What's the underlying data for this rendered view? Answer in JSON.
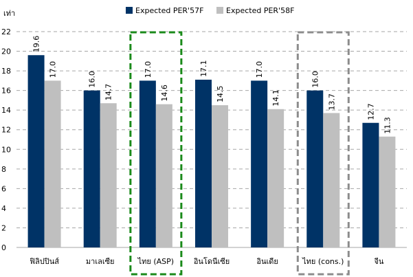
{
  "chart_data": {
    "type": "bar",
    "ylabel": "เท่า",
    "ylim": [
      0,
      22
    ],
    "yticks": [
      0,
      2,
      4,
      6,
      8,
      10,
      12,
      14,
      16,
      18,
      20,
      22
    ],
    "grid": true,
    "legend_position": "top",
    "categories": [
      "ฟิลิปปินส์",
      "มาเลเซีย",
      "ไทย (ASP)",
      "อินโดนีเซีย",
      "อินเดีย",
      "ไทย (cons.)",
      "จีน"
    ],
    "series": [
      {
        "name": "Expected PER'57F",
        "color": "#003366",
        "values": [
          19.6,
          16.0,
          17.0,
          17.1,
          17.0,
          16.0,
          12.7
        ]
      },
      {
        "name": "Expected PER'58F",
        "color": "#bfbfbf",
        "values": [
          17.0,
          14.7,
          14.6,
          14.5,
          14.1,
          13.7,
          11.3
        ]
      }
    ],
    "highlights": [
      {
        "category": "ไทย (ASP)",
        "color": "#1a8a1a"
      },
      {
        "category": "ไทย (cons.)",
        "color": "#8c8c8c"
      }
    ]
  }
}
